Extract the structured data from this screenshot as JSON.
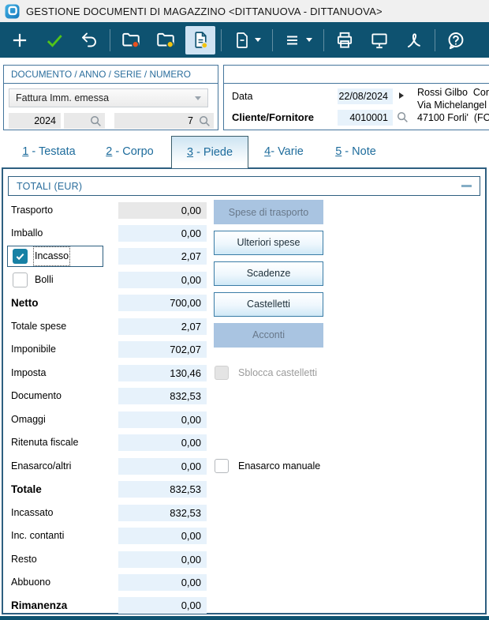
{
  "window": {
    "title": "GESTIONE DOCUMENTI DI MAGAZZINO <DITTANUOVA - DITTANUOVA>",
    "icon": "app-logo-icon"
  },
  "colors": {
    "toolbar_bg": "#0e5270",
    "selected_tool_bg": "#cfe3f3",
    "field_blue": "#e7f2fb",
    "field_gray": "#e8e8e8",
    "border_blue": "#2e5f80",
    "header_text_blue": "#2a6d9c",
    "tab_text": "#1e6c9c",
    "disabled_button_bg": "#a9c4e1",
    "checkbox_teal": "#1781a5",
    "folder_dot_red": "#e8501e",
    "dot_yellow": "#f2c40f",
    "check_green": "#52c41a"
  },
  "toolbar": {
    "icons": [
      "new-icon",
      "confirm-icon",
      "undo-icon",
      "open-folder-red-icon",
      "open-folder-yellow-icon",
      "document-active-icon",
      "document-menu-icon",
      "list-menu-icon",
      "print-icon",
      "monitor-icon",
      "pdf-icon",
      "help-icon"
    ],
    "selected_icon": "document-active-icon"
  },
  "document_selector": {
    "header": "DOCUMENTO / ANNO / SERIE / NUMERO",
    "type_value": "Fattura Imm. emessa",
    "year": "2024",
    "serie": "",
    "number": "7"
  },
  "document_info": {
    "date_label": "Data",
    "date_value": "22/08/2024",
    "client_label": "Cliente/Fornitore",
    "client_code": "4010001",
    "client_lines": [
      "Rossi Gilbo  Cor",
      "Via Michelangel",
      "47100 Forli'  (FO"
    ]
  },
  "tabs": {
    "items": [
      {
        "num": "1",
        "rest": " - Testata",
        "active": false
      },
      {
        "num": "2",
        "rest": " - Corpo",
        "active": false
      },
      {
        "num": "3",
        "rest": " - Piede",
        "active": true
      },
      {
        "num": "4",
        "rest": "- Varie",
        "active": false
      },
      {
        "num": "5",
        "rest": " - Note",
        "active": false
      }
    ]
  },
  "totals": {
    "title": "TOTALI (EUR)",
    "collapse_icon": "minus-icon",
    "rows": [
      {
        "label": "Trasporto",
        "value": "0,00",
        "gray": true,
        "bold": false,
        "checkbox": null
      },
      {
        "label": "Imballo",
        "value": "0,00",
        "gray": false,
        "bold": false,
        "checkbox": null
      },
      {
        "label": "Incasso",
        "value": "2,07",
        "gray": false,
        "bold": false,
        "checkbox": {
          "checked": true,
          "focused": true
        }
      },
      {
        "label": "Bolli",
        "value": "0,00",
        "gray": false,
        "bold": false,
        "checkbox": {
          "checked": false,
          "focused": false
        }
      },
      {
        "label": "Netto",
        "value": "700,00",
        "gray": false,
        "bold": true,
        "checkbox": null
      },
      {
        "label": "Totale spese",
        "value": "2,07",
        "gray": false,
        "bold": false,
        "checkbox": null
      },
      {
        "label": "Imponibile",
        "value": "702,07",
        "gray": false,
        "bold": false,
        "checkbox": null
      },
      {
        "label": "Imposta",
        "value": "130,46",
        "gray": false,
        "bold": false,
        "checkbox": null
      },
      {
        "label": "Documento",
        "value": "832,53",
        "gray": false,
        "bold": false,
        "checkbox": null
      },
      {
        "label": "Omaggi",
        "value": "0,00",
        "gray": false,
        "bold": false,
        "checkbox": null
      },
      {
        "label": "Ritenuta fiscale",
        "value": "0,00",
        "gray": false,
        "bold": false,
        "checkbox": null
      },
      {
        "label": "Enasarco/altri",
        "value": "0,00",
        "gray": false,
        "bold": false,
        "checkbox": null
      },
      {
        "label": "Totale",
        "value": "832,53",
        "gray": false,
        "bold": true,
        "checkbox": null
      },
      {
        "label": "Incassato",
        "value": "832,53",
        "gray": false,
        "bold": false,
        "checkbox": null
      },
      {
        "label": "Inc. contanti",
        "value": "0,00",
        "gray": false,
        "bold": false,
        "checkbox": null
      },
      {
        "label": "Resto",
        "value": "0,00",
        "gray": false,
        "bold": false,
        "checkbox": null
      },
      {
        "label": "Abbuono",
        "value": "0,00",
        "gray": false,
        "bold": false,
        "checkbox": null
      },
      {
        "label": "Rimanenza",
        "value": "0,00",
        "gray": false,
        "bold": true,
        "checkbox": null
      }
    ]
  },
  "side": {
    "buttons": [
      {
        "label": "Spese di trasporto",
        "enabled": false
      },
      {
        "label": "Ulteriori spese",
        "enabled": true
      },
      {
        "label": "Scadenze",
        "enabled": true
      },
      {
        "label": "Castelletti",
        "enabled": true
      },
      {
        "label": "Acconti",
        "enabled": false
      }
    ],
    "checkboxes": [
      {
        "label": "Sblocca castelletti",
        "enabled": false,
        "checked": false
      },
      {
        "label": "Enasarco manuale",
        "enabled": true,
        "checked": false
      }
    ]
  }
}
